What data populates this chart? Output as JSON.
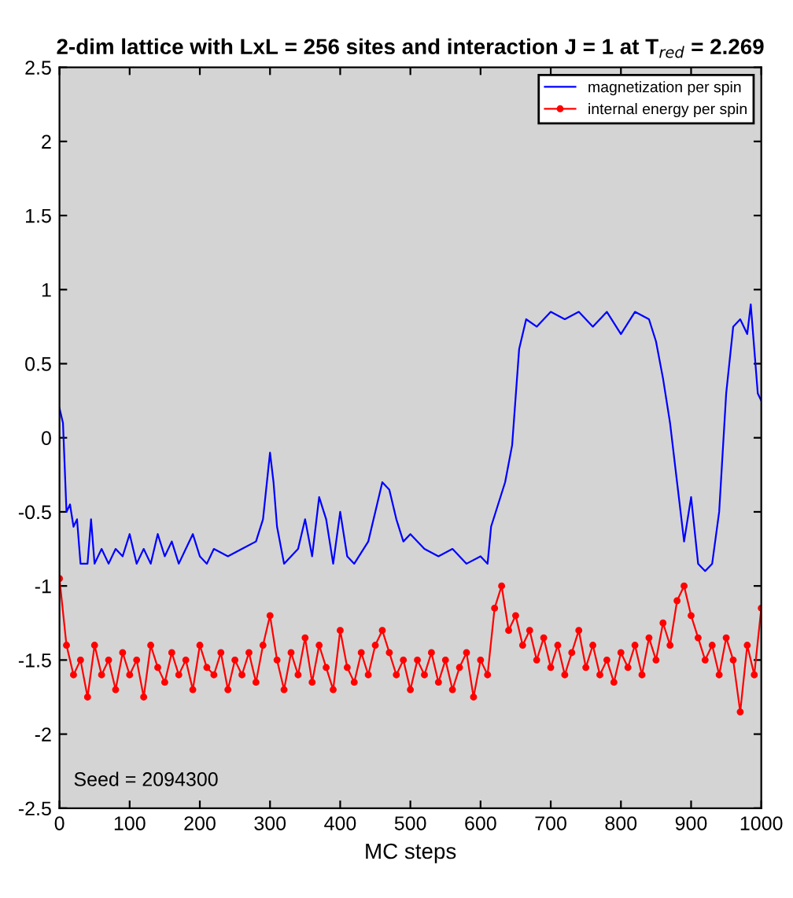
{
  "chart_data": {
    "type": "line",
    "title": "2-dim lattice with LxL = 256 sites and interaction J = 1 at T$_{red}$ = 2.269",
    "xlabel": "MC steps",
    "xlim": [
      0,
      1000
    ],
    "ylim": [
      -2.5,
      2.5
    ],
    "xticks": [
      0,
      100,
      200,
      300,
      400,
      500,
      600,
      700,
      800,
      900,
      1000
    ],
    "yticks": [
      -2.5,
      -2,
      -1.5,
      -1,
      -0.5,
      0,
      0.5,
      1,
      1.5,
      2,
      2.5
    ],
    "grid": false,
    "legend": "top right",
    "annotations": [
      "Seed = 2094300"
    ],
    "series": [
      {
        "name": "magnetization per spin",
        "color": "#0000ff",
        "marker": "none",
        "x": [
          0,
          5,
          10,
          15,
          20,
          25,
          30,
          40,
          45,
          50,
          60,
          70,
          80,
          90,
          100,
          110,
          120,
          130,
          140,
          150,
          160,
          170,
          180,
          190,
          200,
          210,
          220,
          240,
          260,
          280,
          290,
          300,
          305,
          310,
          320,
          340,
          350,
          360,
          370,
          380,
          390,
          400,
          410,
          420,
          440,
          450,
          460,
          470,
          480,
          490,
          500,
          520,
          540,
          560,
          580,
          600,
          610,
          615,
          625,
          635,
          645,
          655,
          665,
          680,
          700,
          720,
          740,
          760,
          780,
          800,
          820,
          840,
          850,
          860,
          870,
          880,
          890,
          900,
          910,
          920,
          930,
          940,
          950,
          960,
          970,
          980,
          985,
          995,
          1000
        ],
        "values": [
          0.2,
          0.1,
          -0.5,
          -0.45,
          -0.6,
          -0.55,
          -0.85,
          -0.85,
          -0.55,
          -0.85,
          -0.75,
          -0.85,
          -0.75,
          -0.8,
          -0.65,
          -0.85,
          -0.75,
          -0.85,
          -0.65,
          -0.8,
          -0.7,
          -0.85,
          -0.75,
          -0.65,
          -0.8,
          -0.85,
          -0.75,
          -0.8,
          -0.75,
          -0.7,
          -0.55,
          -0.1,
          -0.3,
          -0.6,
          -0.85,
          -0.75,
          -0.55,
          -0.8,
          -0.4,
          -0.55,
          -0.85,
          -0.5,
          -0.8,
          -0.85,
          -0.7,
          -0.5,
          -0.3,
          -0.35,
          -0.55,
          -0.7,
          -0.65,
          -0.75,
          -0.8,
          -0.75,
          -0.85,
          -0.8,
          -0.85,
          -0.6,
          -0.45,
          -0.3,
          -0.05,
          0.6,
          0.8,
          0.75,
          0.85,
          0.8,
          0.85,
          0.75,
          0.85,
          0.7,
          0.85,
          0.8,
          0.65,
          0.4,
          0.1,
          -0.3,
          -0.7,
          -0.4,
          -0.85,
          -0.9,
          -0.85,
          -0.5,
          0.3,
          0.75,
          0.8,
          0.7,
          0.9,
          0.3,
          0.25
        ]
      },
      {
        "name": "internal energy per spin",
        "color": "#ff0000",
        "marker": "circle",
        "x": [
          0,
          10,
          20,
          30,
          40,
          50,
          60,
          70,
          80,
          90,
          100,
          110,
          120,
          130,
          140,
          150,
          160,
          170,
          180,
          190,
          200,
          210,
          220,
          230,
          240,
          250,
          260,
          270,
          280,
          290,
          300,
          310,
          320,
          330,
          340,
          350,
          360,
          370,
          380,
          390,
          400,
          410,
          420,
          430,
          440,
          450,
          460,
          470,
          480,
          490,
          500,
          510,
          520,
          530,
          540,
          550,
          560,
          570,
          580,
          590,
          600,
          610,
          620,
          630,
          640,
          650,
          660,
          670,
          680,
          690,
          700,
          710,
          720,
          730,
          740,
          750,
          760,
          770,
          780,
          790,
          800,
          810,
          820,
          830,
          840,
          850,
          860,
          870,
          880,
          890,
          900,
          910,
          920,
          930,
          940,
          950,
          960,
          970,
          980,
          990,
          1000
        ],
        "values": [
          -0.95,
          -1.4,
          -1.6,
          -1.5,
          -1.75,
          -1.4,
          -1.6,
          -1.5,
          -1.7,
          -1.45,
          -1.6,
          -1.5,
          -1.75,
          -1.4,
          -1.55,
          -1.65,
          -1.45,
          -1.6,
          -1.5,
          -1.7,
          -1.4,
          -1.55,
          -1.6,
          -1.45,
          -1.7,
          -1.5,
          -1.6,
          -1.45,
          -1.65,
          -1.4,
          -1.2,
          -1.5,
          -1.7,
          -1.45,
          -1.6,
          -1.35,
          -1.65,
          -1.4,
          -1.55,
          -1.7,
          -1.3,
          -1.55,
          -1.65,
          -1.45,
          -1.6,
          -1.4,
          -1.3,
          -1.45,
          -1.6,
          -1.5,
          -1.7,
          -1.5,
          -1.6,
          -1.45,
          -1.65,
          -1.5,
          -1.7,
          -1.55,
          -1.45,
          -1.75,
          -1.5,
          -1.6,
          -1.15,
          -1.0,
          -1.3,
          -1.2,
          -1.4,
          -1.3,
          -1.5,
          -1.35,
          -1.55,
          -1.4,
          -1.6,
          -1.45,
          -1.3,
          -1.55,
          -1.4,
          -1.6,
          -1.5,
          -1.65,
          -1.45,
          -1.55,
          -1.4,
          -1.6,
          -1.35,
          -1.5,
          -1.25,
          -1.4,
          -1.1,
          -1.0,
          -1.2,
          -1.35,
          -1.5,
          -1.4,
          -1.6,
          -1.35,
          -1.5,
          -1.85,
          -1.4,
          -1.6,
          -1.15
        ]
      }
    ]
  }
}
